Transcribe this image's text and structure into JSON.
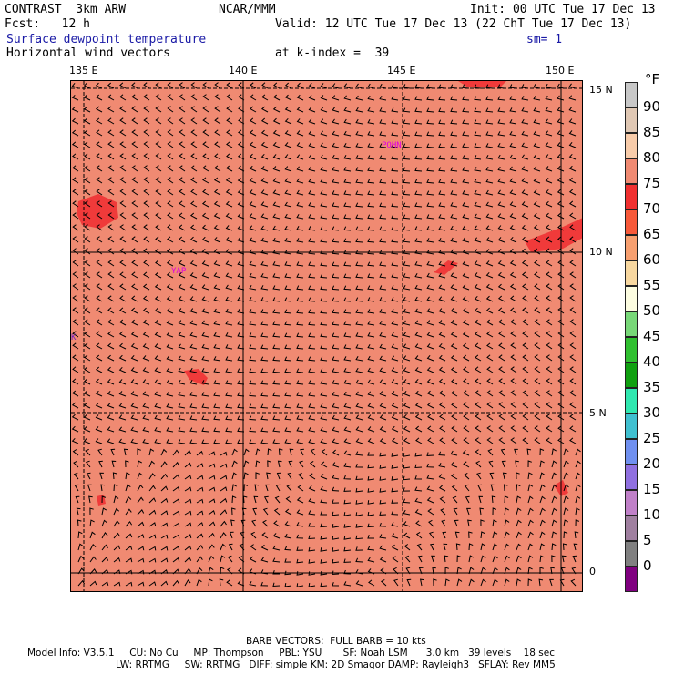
{
  "header": {
    "model": "CONTRAST  3km ARW",
    "org": "NCAR/MMM",
    "init": "Init: 00 UTC Tue 17 Dec 13",
    "fcst": "Fcst:   12 h",
    "valid": "Valid: 12 UTC Tue 17 Dec 13 (22 ChT Tue 17 Dec 13)",
    "field1": "Surface dewpoint temperature",
    "sm": "sm= 1",
    "field2": "Horizontal wind vectors",
    "klevel": "at k-index =  39"
  },
  "axes": {
    "lon_labels": [
      "135 E",
      "140 E",
      "145 E",
      "150 E"
    ],
    "lat_labels": [
      "15 N",
      "10 N",
      "5 N",
      "0"
    ]
  },
  "map_labels": {
    "pohnpei": "POHN",
    "yap": "YAP",
    "west_marker": "K"
  },
  "colorbar": {
    "unit": "°F",
    "levels": [
      {
        "label": "90",
        "color": "#c8c8c8"
      },
      {
        "label": "85",
        "color": "#e0c8b4"
      },
      {
        "label": "80",
        "color": "#f8ccaa"
      },
      {
        "label": "75",
        "color": "#f08a72"
      },
      {
        "label": "70",
        "color": "#f03030"
      },
      {
        "label": "65",
        "color": "#f85a3a"
      },
      {
        "label": "60",
        "color": "#f8a070"
      },
      {
        "label": "55",
        "color": "#f8d8a0"
      },
      {
        "label": "50",
        "color": "#fcfce0"
      },
      {
        "label": "45",
        "color": "#78d878"
      },
      {
        "label": "40",
        "color": "#30c030"
      },
      {
        "label": "35",
        "color": "#10a010"
      },
      {
        "label": "30",
        "color": "#30e8b0"
      },
      {
        "label": "25",
        "color": "#40c0d0"
      },
      {
        "label": "20",
        "color": "#7090f0"
      },
      {
        "label": "15",
        "color": "#9070e0"
      },
      {
        "label": "10",
        "color": "#c080c8"
      },
      {
        "label": "5",
        "color": "#a080a0"
      },
      {
        "label": "0",
        "color": "#808080"
      },
      {
        "label": "",
        "color": "#800080"
      }
    ]
  },
  "footer": {
    "barb": "BARB VECTORS:  FULL BARB = 10 kts",
    "line1": "Model Info: V3.5.1     CU: No Cu     MP: Thompson     PBL: YSU       SF: Noah LSM      3.0 km   39 levels    18 sec",
    "line2": "LW: RRTMG     SW: RRTMG   DIFF: simple KM: 2D Smagor DAMP: Rayleigh3   SFLAY: Rev MM5"
  },
  "colors": {
    "background_field": "#f08a72",
    "moist_patch": "#f03a3a",
    "barb": "#000000",
    "label_magenta": "#e000e0"
  }
}
